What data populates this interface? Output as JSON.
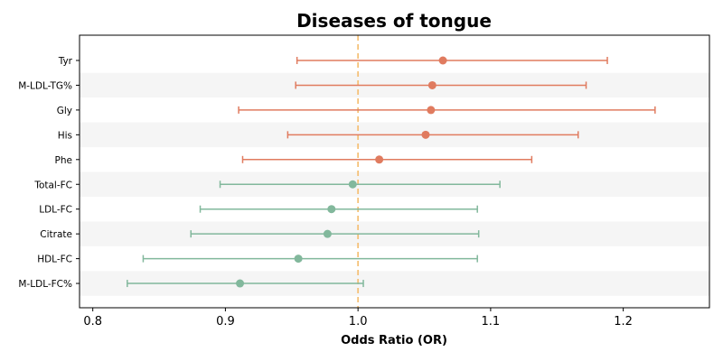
{
  "chart_data": {
    "type": "forest",
    "title": "Diseases of tongue",
    "xlabel": "Odds Ratio (OR)",
    "xlim": [
      0.79,
      1.265
    ],
    "xticks": [
      0.8,
      0.9,
      1.0,
      1.1,
      1.2
    ],
    "xtick_labels": [
      "0.8",
      "0.9",
      "1.0",
      "1.1",
      "1.2"
    ],
    "reference_line": 1.0,
    "colors": {
      "risk": "#e07b5f",
      "protective": "#82b89c",
      "reference": "#f5c27a",
      "band": "#f5f5f5"
    },
    "rows": [
      {
        "label": "Tyr",
        "or": 1.064,
        "lower": 0.954,
        "upper": 1.188,
        "group": "risk"
      },
      {
        "label": "M-LDL-TG%",
        "or": 1.056,
        "lower": 0.953,
        "upper": 1.172,
        "group": "risk"
      },
      {
        "label": "Gly",
        "or": 1.055,
        "lower": 0.91,
        "upper": 1.224,
        "group": "risk"
      },
      {
        "label": "His",
        "or": 1.051,
        "lower": 0.947,
        "upper": 1.166,
        "group": "risk"
      },
      {
        "label": "Phe",
        "or": 1.016,
        "lower": 0.913,
        "upper": 1.131,
        "group": "risk"
      },
      {
        "label": "Total-FC",
        "or": 0.996,
        "lower": 0.896,
        "upper": 1.107,
        "group": "protective"
      },
      {
        "label": "LDL-FC",
        "or": 0.98,
        "lower": 0.881,
        "upper": 1.09,
        "group": "protective"
      },
      {
        "label": "Citrate",
        "or": 0.977,
        "lower": 0.874,
        "upper": 1.091,
        "group": "protective"
      },
      {
        "label": "HDL-FC",
        "or": 0.955,
        "lower": 0.838,
        "upper": 1.09,
        "group": "protective"
      },
      {
        "label": "M-LDL-FC%",
        "or": 0.911,
        "lower": 0.826,
        "upper": 1.004,
        "group": "protective"
      }
    ]
  }
}
